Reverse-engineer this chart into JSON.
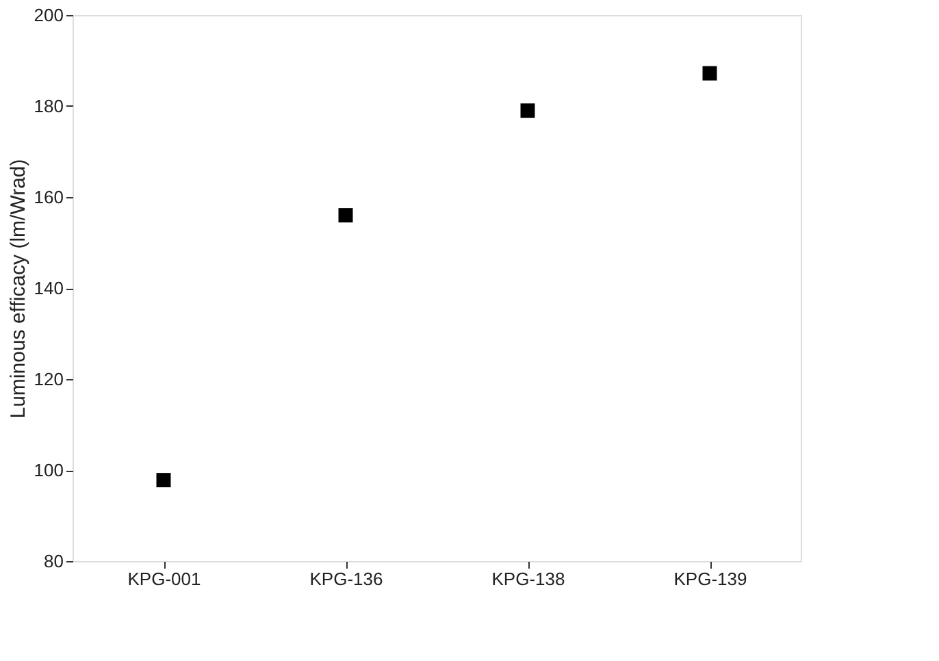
{
  "chart_data": {
    "type": "scatter",
    "ylabel": "Luminous efficacy (lm/Wrad)",
    "categories": [
      "KPG-001",
      "KPG-136",
      "KPG-138",
      "KPG-139"
    ],
    "series": [
      {
        "color": "#000000",
        "values": [
          97.8,
          156,
          179,
          187.2
        ]
      }
    ],
    "ylim": [
      80,
      200
    ],
    "yticks": [
      80,
      100,
      120,
      140,
      160,
      180,
      200
    ],
    "marker": "square",
    "grid": false,
    "legend": false
  }
}
